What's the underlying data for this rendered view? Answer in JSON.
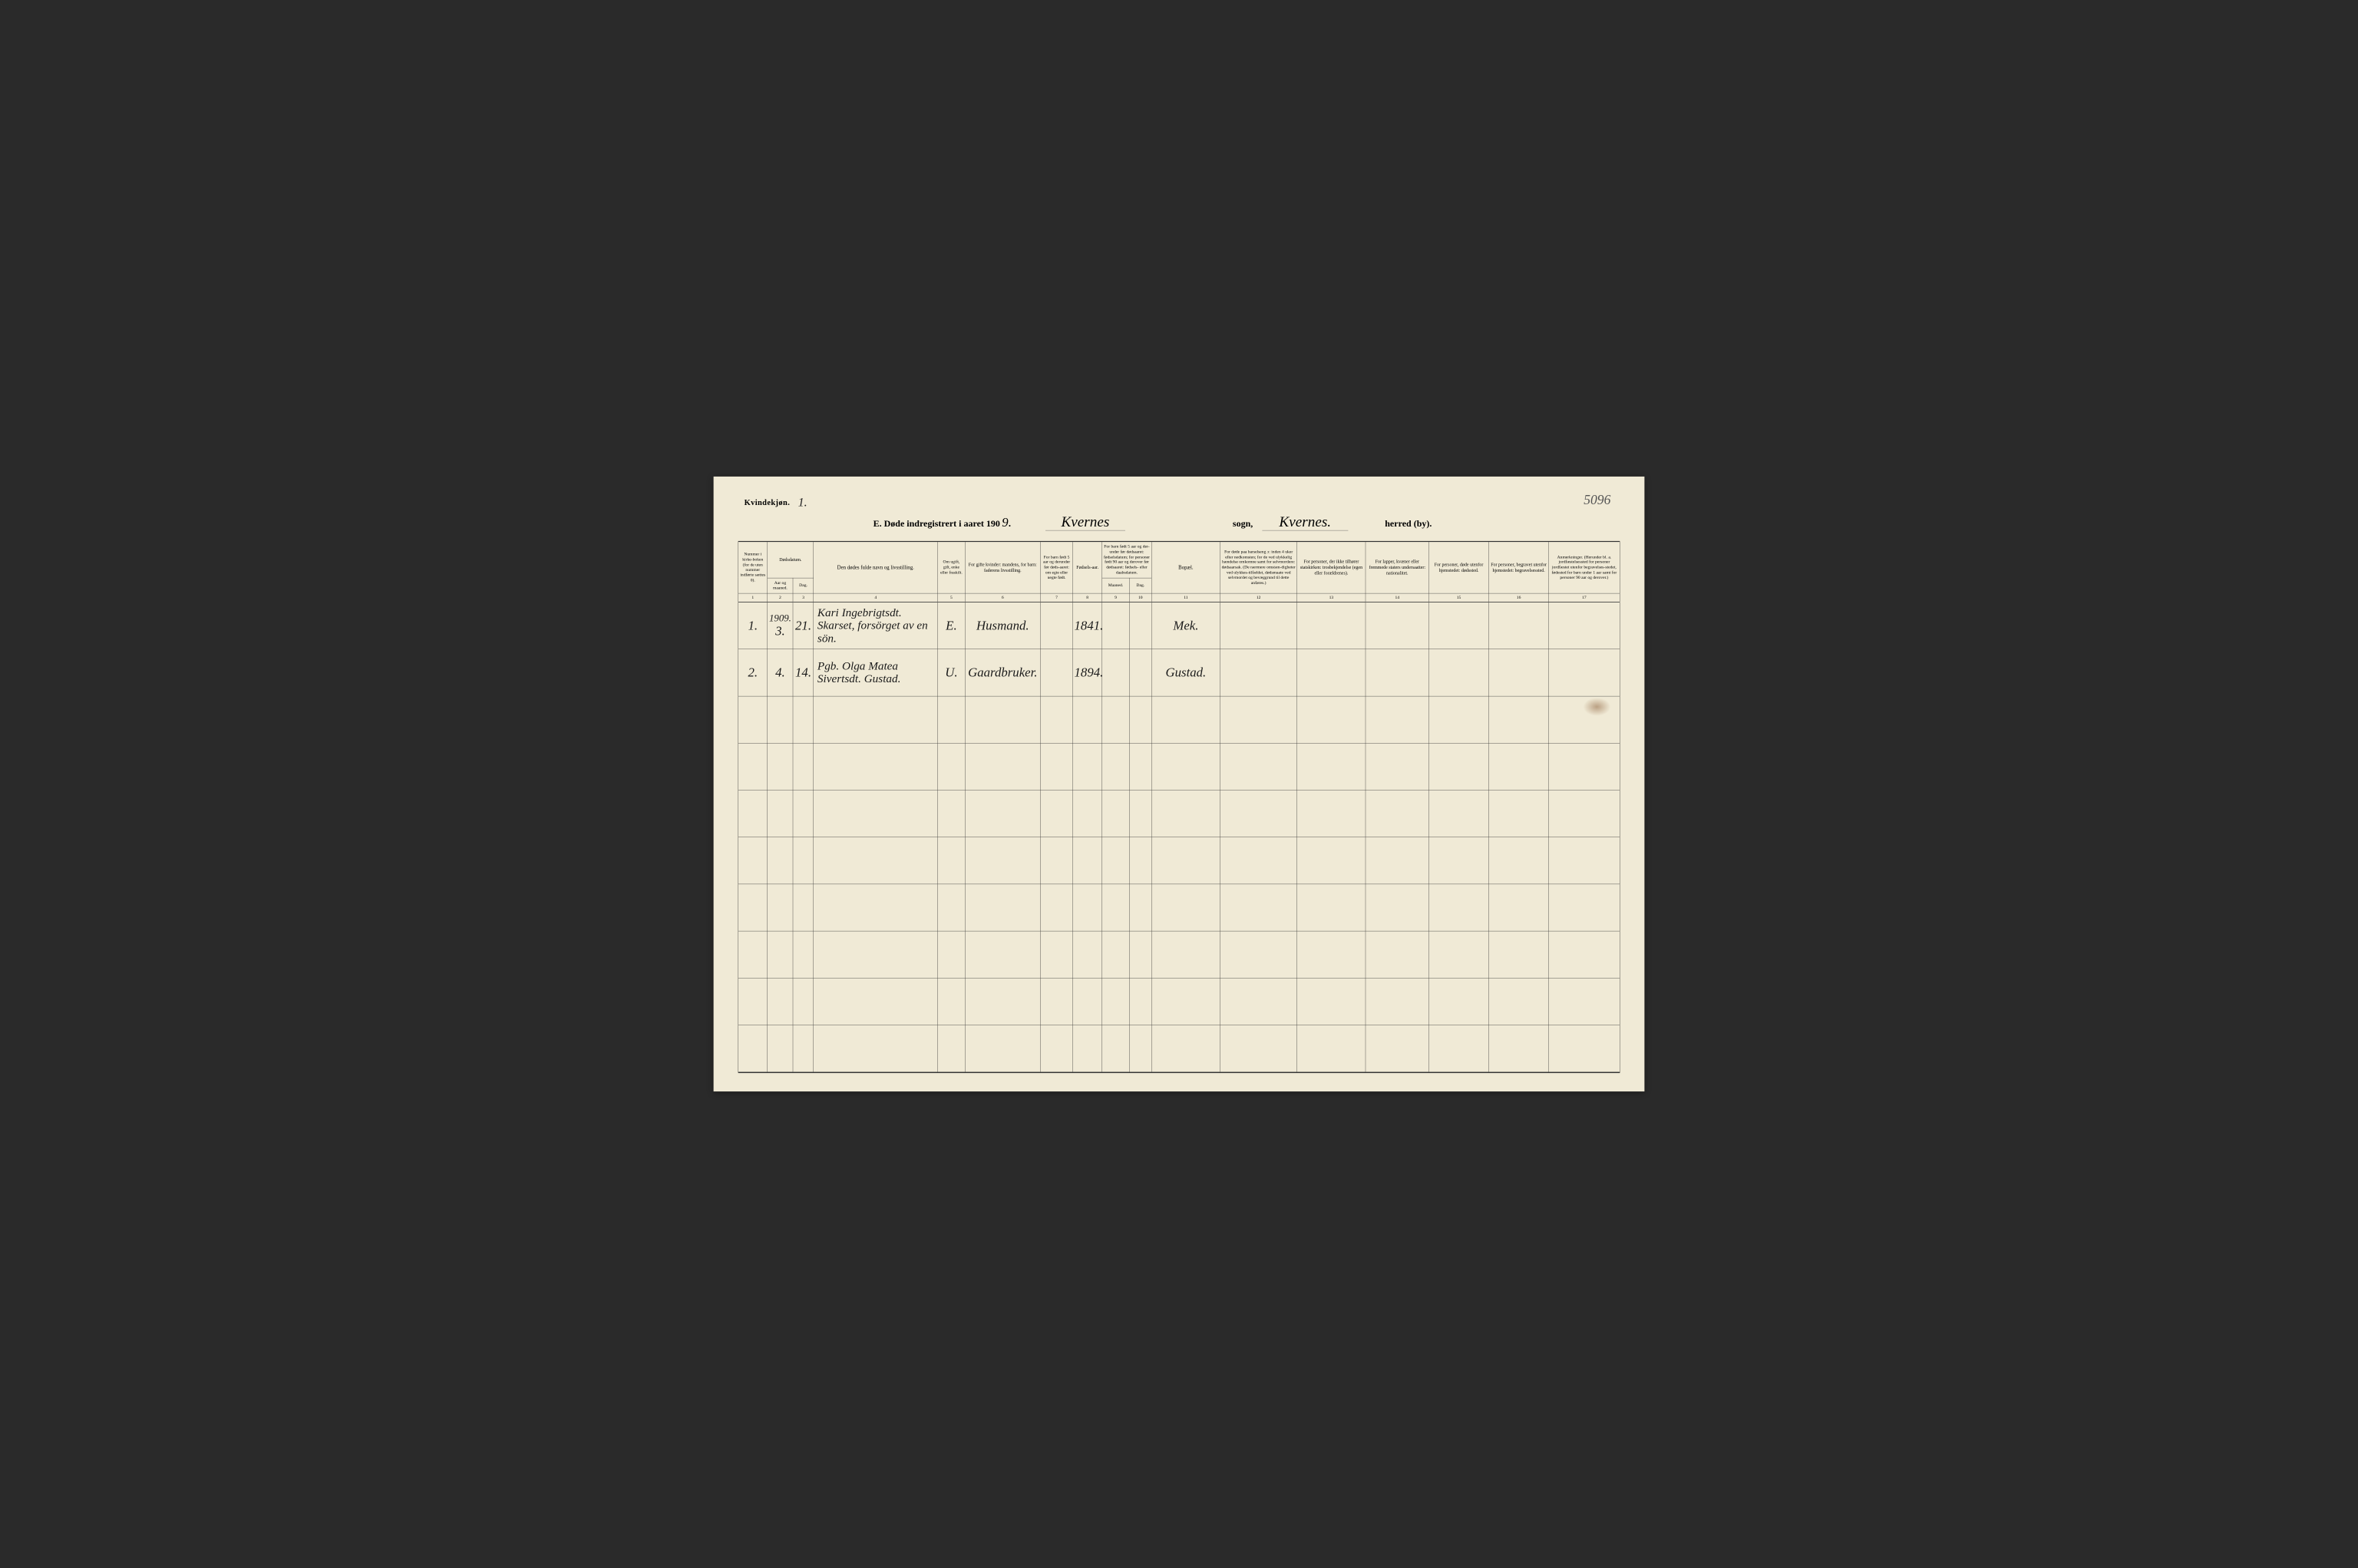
{
  "page_number_topright": "5096",
  "gender": {
    "label": "Kvindekjøn.",
    "count": "1."
  },
  "title": {
    "prefix": "E.  Døde indregistrert i aaret 190",
    "year_suffix": "9.",
    "sogn_value": "Kvernes",
    "sogn_label": "sogn,",
    "herred_value": "Kvernes.",
    "herred_label": "herred (by)."
  },
  "columns": {
    "c1": "Nummer i kirke-boken (for de uten nummer indførte sættes 0).",
    "c2_top": "Dødsdatum.",
    "c2a": "Aar og maaned.",
    "c2b": "Dag.",
    "c4": "Den dødes fulde navn og livsstilling.",
    "c5": "Om ugift, gift, enke eller fraskilt.",
    "c6": "For gifte kvinder: mandens, for barn: faderens livsstilling.",
    "c7": "For barn født 5 aar og derunder før døds-aaret: om egte eller uegte født.",
    "c8": "Fødsels-aar.",
    "c9_top": "For barn født 5 aar og der-under før dødsaaret: fødselsdatum; for personer født 90 aar og derover før dødsaaret: fødsels- eller daabsdatum.",
    "c9a": "Maaned.",
    "c9b": "Dag.",
    "c11": "Bopæl.",
    "c12": "For døde paa barselseng ɔ: inden 4 uker efter nedkomsten; for de ved ulykkelig hændelse omkomne samt for selvmordere: dødsaarsak. (De nærmere omstæn-digheter ved ulykkes-tilfældet, dødsmaate ved selvmordet og bevæggrund til dette anføres.)",
    "c13": "For personer, der ikke tilhører statskirken: trosbekjendelse (egen eller forældrenes).",
    "c14": "For lapper, kvæner eller fremmede staters undersaatter: nationalitet.",
    "c15": "For personer, døde utenfor hjemstedet: dødssted.",
    "c16": "For personer, begravet utenfor hjemstedet: begravelsessted.",
    "c17": "Anmerkninger. (Herunder bl. a. jordfæstelsessted for personer jordfæstet utenfor begravelses-stedet, fødested for barn under 1 aar samt for personer 90 aar og derover.)"
  },
  "colnums": [
    "1",
    "2",
    "3",
    "4",
    "5",
    "6",
    "7",
    "8",
    "9",
    "10",
    "11",
    "12",
    "13",
    "14",
    "15",
    "16",
    "17"
  ],
  "entries": [
    {
      "num": "1.",
      "year_line": "1909.",
      "month": "3.",
      "day": "21.",
      "name": "Kari Ingebrigtsdt. Skarset, forsörget av en sön.",
      "civil": "E.",
      "occupation": "Husmand.",
      "birthyear": "1841.",
      "residence": "Mek."
    },
    {
      "num": "2.",
      "year_line": "",
      "month": "4.",
      "day": "14.",
      "name": "Pgb. Olga Matea Sivertsdt. Gustad.",
      "civil": "U.",
      "occupation": "Gaardbruker.",
      "birthyear": "1894.",
      "residence": "Gustad."
    }
  ],
  "colors": {
    "paper": "#f0ead6",
    "ink": "#1a1a1a",
    "rule": "#333333",
    "stain": "rgba(120,70,30,0.45)"
  },
  "col_widths_pct": [
    3.4,
    3.0,
    2.4,
    14.5,
    3.2,
    8.8,
    3.8,
    3.4,
    3.2,
    2.6,
    8.0,
    9.0,
    8.0,
    7.4,
    7.0,
    7.0,
    8.3
  ]
}
